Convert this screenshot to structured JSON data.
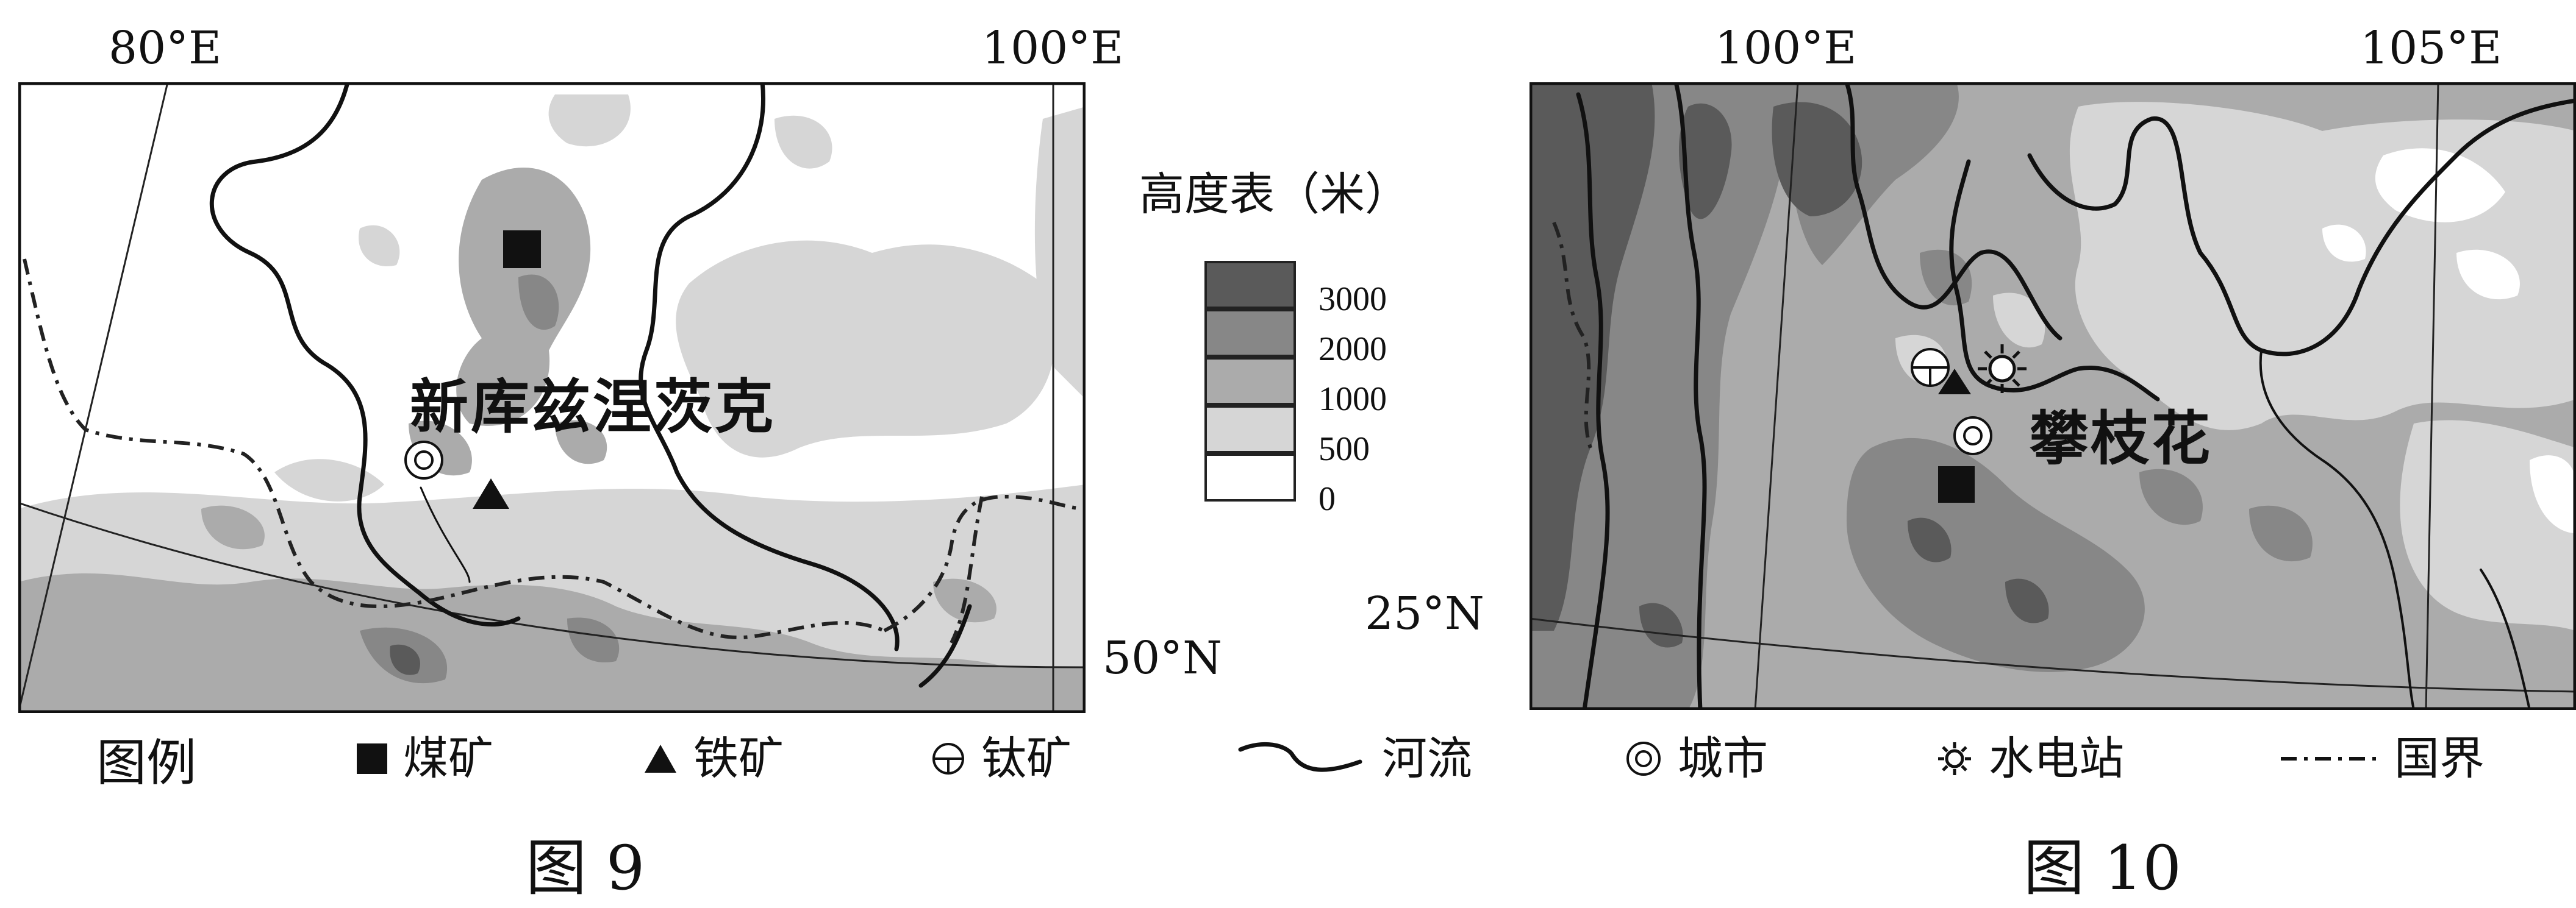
{
  "map9": {
    "lon_labels": [
      "80°E",
      "100°E"
    ],
    "lat_label": "50°N",
    "city_name": "新库兹涅茨克",
    "caption": "图 9"
  },
  "map10": {
    "lon_labels": [
      "100°E",
      "105°E"
    ],
    "lat_label": "25°N",
    "city_name": "攀枝花",
    "caption": "图 10"
  },
  "elevation_scale": {
    "title": "高度表（米）",
    "labels": [
      "3000",
      "2000",
      "1000",
      "500",
      "0"
    ],
    "colors": [
      "#5a5a5a",
      "#878787",
      "#ababab",
      "#d6d6d6",
      "#ffffff"
    ]
  },
  "legend": {
    "title": "图例",
    "items": [
      {
        "icon": "coal-mine-square",
        "label": "煤矿"
      },
      {
        "icon": "iron-mine-triangle",
        "label": "铁矿"
      },
      {
        "icon": "titanium-mine-circle",
        "label": "钛矿"
      },
      {
        "icon": "river-line",
        "label": "河流"
      },
      {
        "icon": "city-double-circle",
        "label": "城市"
      },
      {
        "icon": "hydropower-station-sun",
        "label": "水电站"
      },
      {
        "icon": "national-boundary-dashdot",
        "label": "国界"
      }
    ]
  }
}
